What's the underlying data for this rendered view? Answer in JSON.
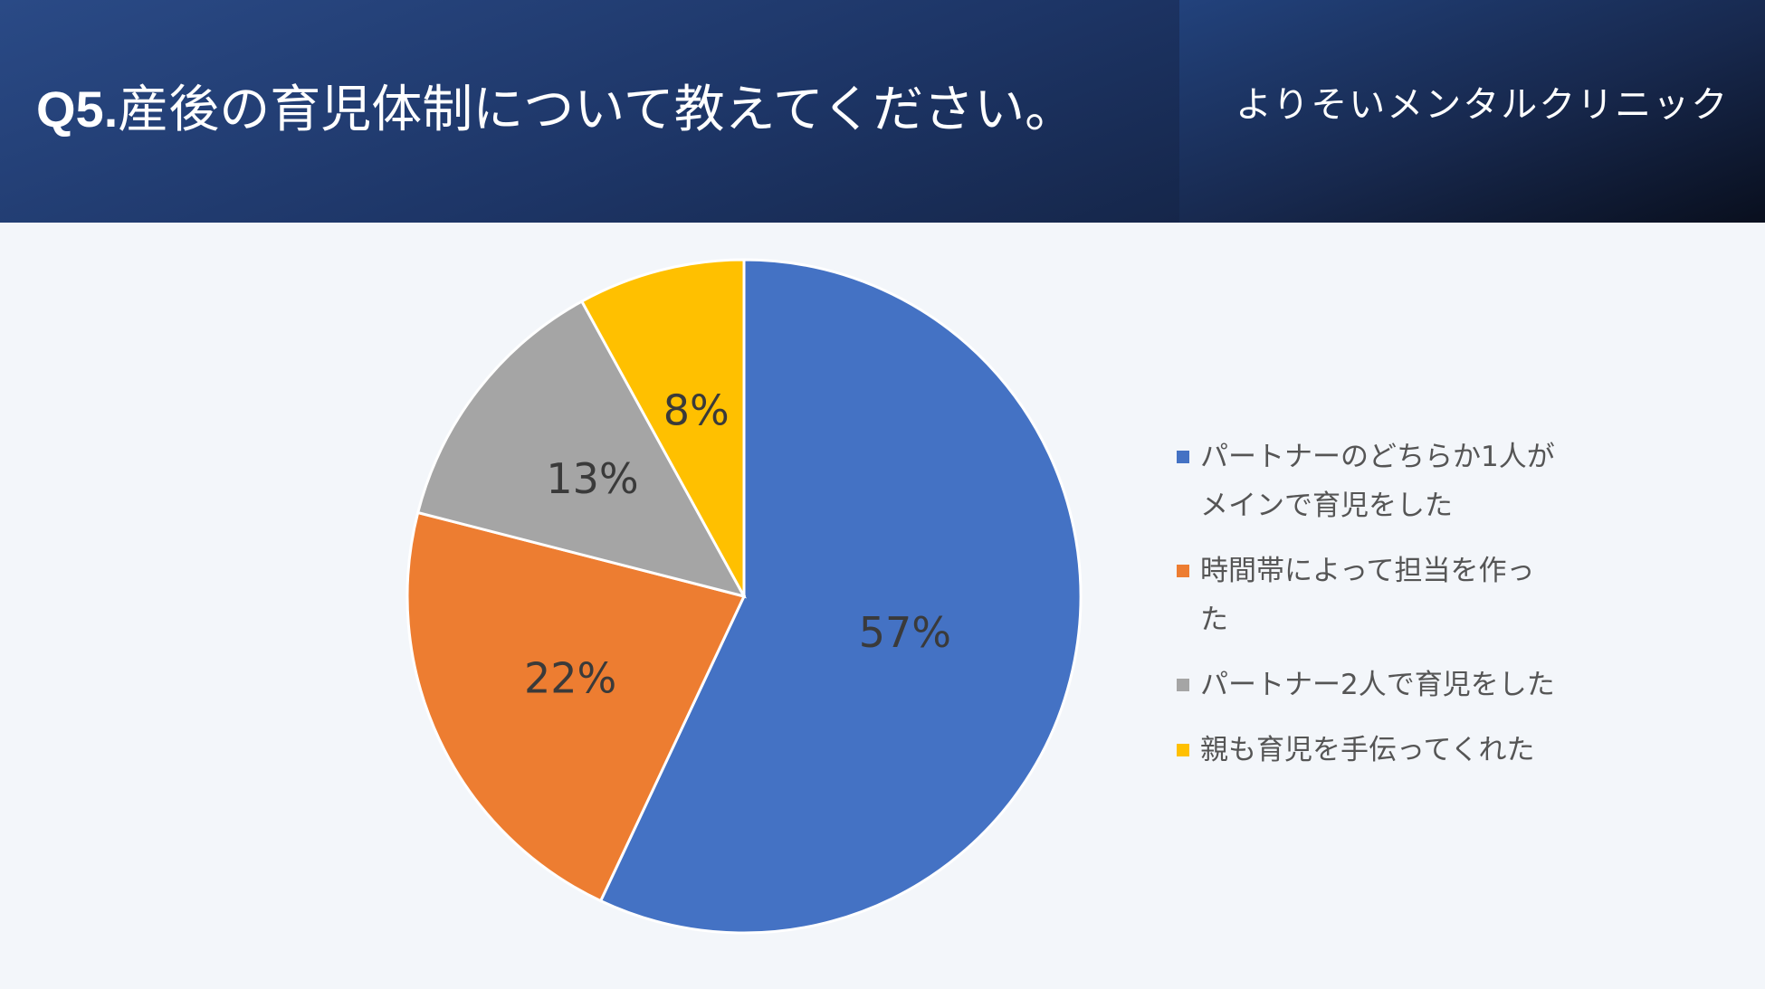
{
  "header": {
    "title_prefix": "Q5.",
    "title_text": "産後の育児体制について教えてください。",
    "clinic_name": "よりそいメンタルクリニック"
  },
  "chart_data": {
    "type": "pie",
    "start_angle_deg": 0,
    "direction": "clockwise",
    "slices": [
      {
        "label": "パートナーのどちらか1人がメインで育児をした",
        "value": 57,
        "display": "57%",
        "color": "#4472c4"
      },
      {
        "label": "時間帯によって担当を作った",
        "value": 22,
        "display": "22%",
        "color": "#ed7d31"
      },
      {
        "label": "パートナー2人で育児をした",
        "value": 13,
        "display": "13%",
        "color": "#a5a5a5"
      },
      {
        "label": "親も育児を手伝ってくれた",
        "value": 8,
        "display": "8%",
        "color": "#ffc000"
      }
    ],
    "legend_position": "right"
  }
}
